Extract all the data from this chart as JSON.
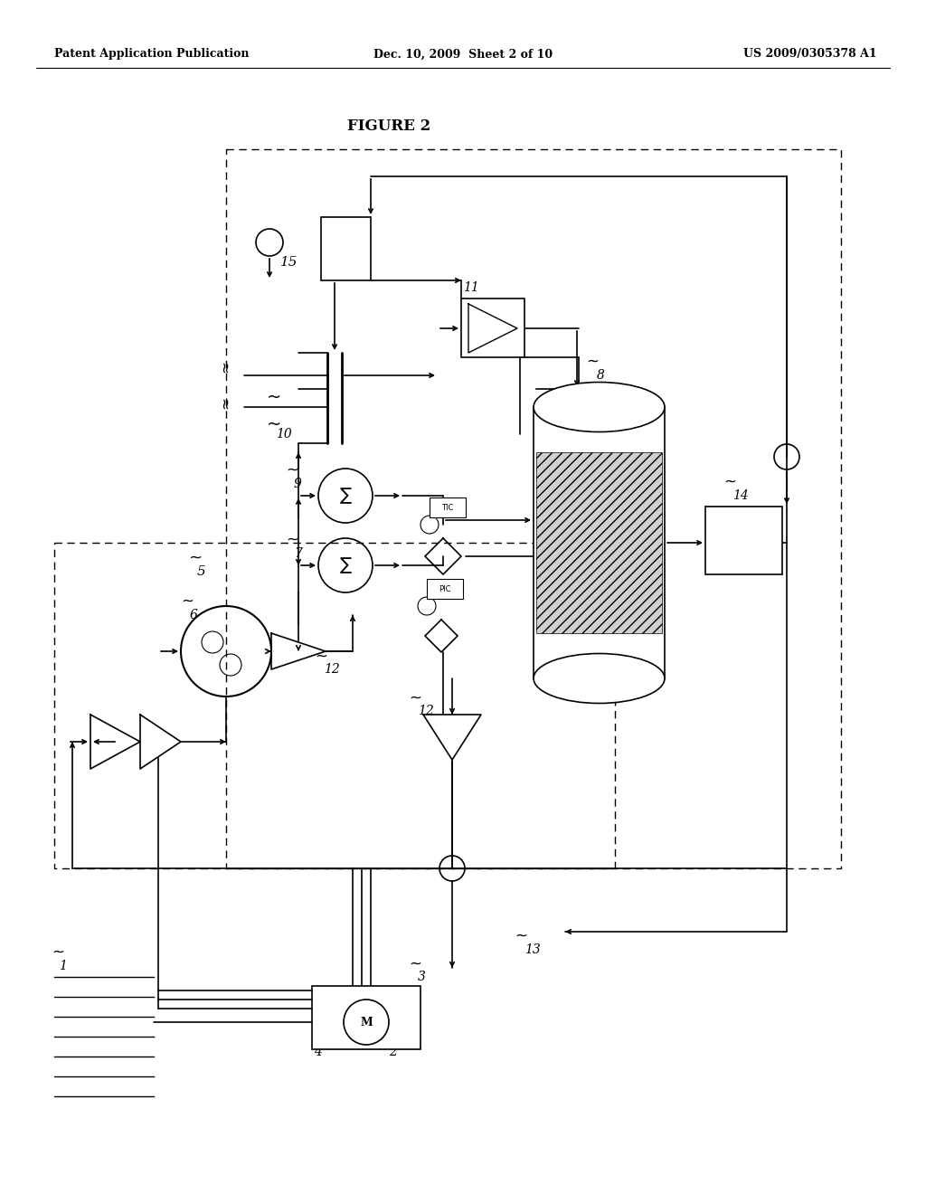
{
  "title": "FIGURE 2",
  "header_left": "Patent Application Publication",
  "header_center": "Dec. 10, 2009  Sheet 2 of 10",
  "header_right": "US 2009/0305378 A1",
  "bg_color": "#ffffff",
  "lc": "#000000",
  "lw": 1.2
}
